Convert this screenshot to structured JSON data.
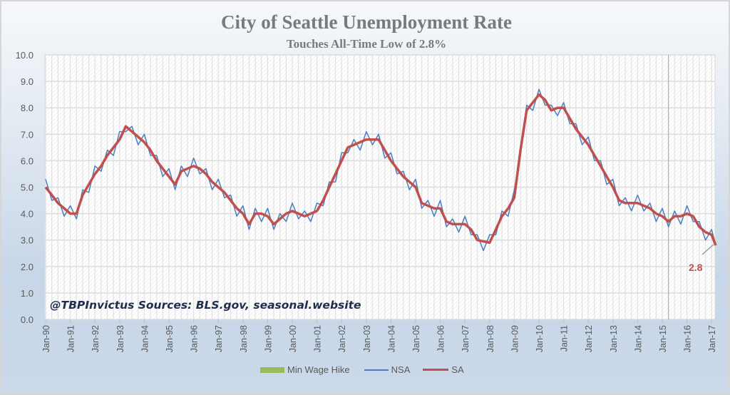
{
  "chart_data": {
    "type": "line",
    "title": "City of Seattle Unemployment Rate",
    "subtitle": "Touches All-Time Low of 2.8%",
    "ylim": [
      0,
      10
    ],
    "y_ticks": [
      "0.0",
      "1.0",
      "2.0",
      "3.0",
      "4.0",
      "5.0",
      "6.0",
      "7.0",
      "8.0",
      "9.0",
      "10.0"
    ],
    "x_ticks": [
      "Jan-90",
      "Jan-91",
      "Jan-92",
      "Jan-93",
      "Jan-94",
      "Jan-95",
      "Jan-96",
      "Jan-97",
      "Jan-98",
      "Jan-99",
      "Jan-00",
      "Jan-01",
      "Jan-02",
      "Jan-03",
      "Jan-04",
      "Jan-05",
      "Jan-06",
      "Jan-07",
      "Jan-08",
      "Jan-09",
      "Jan-10",
      "Jan-11",
      "Jan-12",
      "Jan-13",
      "Jan-14",
      "Jan-15",
      "Jan-16",
      "Jan-17"
    ],
    "grid": true,
    "legend_position": "bottom",
    "annotation": "@TBPInvictus Sources: BLS.gov, seasonal.website",
    "last_value_label": "2.8",
    "min_wage_hike_date": "2015-04",
    "dates": [
      "1990-01",
      "1990-04",
      "1990-07",
      "1990-10",
      "1991-01",
      "1991-04",
      "1991-07",
      "1991-10",
      "1992-01",
      "1992-04",
      "1992-07",
      "1992-10",
      "1993-01",
      "1993-04",
      "1993-07",
      "1993-10",
      "1994-01",
      "1994-04",
      "1994-07",
      "1994-10",
      "1995-01",
      "1995-04",
      "1995-07",
      "1995-10",
      "1996-01",
      "1996-04",
      "1996-07",
      "1996-10",
      "1997-01",
      "1997-04",
      "1997-07",
      "1997-10",
      "1998-01",
      "1998-04",
      "1998-07",
      "1998-10",
      "1999-01",
      "1999-04",
      "1999-07",
      "1999-10",
      "2000-01",
      "2000-04",
      "2000-07",
      "2000-10",
      "2001-01",
      "2001-04",
      "2001-07",
      "2001-10",
      "2002-01",
      "2002-04",
      "2002-07",
      "2002-10",
      "2003-01",
      "2003-04",
      "2003-07",
      "2003-10",
      "2004-01",
      "2004-04",
      "2004-07",
      "2004-10",
      "2005-01",
      "2005-04",
      "2005-07",
      "2005-10",
      "2006-01",
      "2006-04",
      "2006-07",
      "2006-10",
      "2007-01",
      "2007-04",
      "2007-07",
      "2007-10",
      "2008-01",
      "2008-04",
      "2008-07",
      "2008-10",
      "2009-01",
      "2009-04",
      "2009-07",
      "2009-10",
      "2010-01",
      "2010-04",
      "2010-07",
      "2010-10",
      "2011-01",
      "2011-04",
      "2011-07",
      "2011-10",
      "2012-01",
      "2012-04",
      "2012-07",
      "2012-10",
      "2013-01",
      "2013-04",
      "2013-07",
      "2013-10",
      "2014-01",
      "2014-04",
      "2014-07",
      "2014-10",
      "2015-01",
      "2015-04",
      "2015-07",
      "2015-10",
      "2016-01",
      "2016-04",
      "2016-07",
      "2016-10",
      "2017-01",
      "2017-03"
    ],
    "series": [
      {
        "name": "Min Wage Hike",
        "color": "#9bbb59"
      },
      {
        "name": "NSA",
        "color": "#4a7fc1",
        "values": [
          5.3,
          4.5,
          4.6,
          3.9,
          4.3,
          3.8,
          4.9,
          4.8,
          5.8,
          5.6,
          6.4,
          6.2,
          7.1,
          7.1,
          7.3,
          6.6,
          7.0,
          6.2,
          6.2,
          5.4,
          5.7,
          4.9,
          5.8,
          5.4,
          6.1,
          5.5,
          5.7,
          4.9,
          5.3,
          4.6,
          4.7,
          3.9,
          4.3,
          3.4,
          4.2,
          3.7,
          4.2,
          3.4,
          4.0,
          3.7,
          4.4,
          3.8,
          4.1,
          3.7,
          4.4,
          4.3,
          5.2,
          5.2,
          6.3,
          6.3,
          6.8,
          6.4,
          7.1,
          6.6,
          7.0,
          6.1,
          6.3,
          5.5,
          5.6,
          4.9,
          5.3,
          4.2,
          4.5,
          3.9,
          4.5,
          3.5,
          3.8,
          3.3,
          3.9,
          3.2,
          3.2,
          2.6,
          3.2,
          3.2,
          4.1,
          3.9,
          4.9,
          6.2,
          8.1,
          7.9,
          8.7,
          8.1,
          8.1,
          7.7,
          8.2,
          7.4,
          7.4,
          6.6,
          6.9,
          6.0,
          6.0,
          5.1,
          5.3,
          4.3,
          4.6,
          4.1,
          4.7,
          4.1,
          4.4,
          3.7,
          4.2,
          3.5,
          4.1,
          3.6,
          4.3,
          3.7,
          3.7,
          3.0,
          3.4,
          2.8
        ]
      },
      {
        "name": "SA",
        "color": "#c0504d",
        "values": [
          5.0,
          4.7,
          4.4,
          4.2,
          4.0,
          4.0,
          4.7,
          5.1,
          5.5,
          5.8,
          6.2,
          6.5,
          6.8,
          7.3,
          7.1,
          6.9,
          6.7,
          6.4,
          6.0,
          5.7,
          5.4,
          5.1,
          5.6,
          5.7,
          5.8,
          5.7,
          5.5,
          5.2,
          5.0,
          4.8,
          4.5,
          4.2,
          4.0,
          3.6,
          4.0,
          4.0,
          3.9,
          3.6,
          3.8,
          4.0,
          4.1,
          4.0,
          3.9,
          4.0,
          4.1,
          4.5,
          5.0,
          5.5,
          6.0,
          6.5,
          6.6,
          6.7,
          6.8,
          6.8,
          6.8,
          6.4,
          6.0,
          5.7,
          5.4,
          5.2,
          5.0,
          4.4,
          4.3,
          4.2,
          4.2,
          3.7,
          3.6,
          3.6,
          3.6,
          3.4,
          3.0,
          2.95,
          2.9,
          3.4,
          3.9,
          4.2,
          4.6,
          6.4,
          7.9,
          8.2,
          8.5,
          8.3,
          7.9,
          8.0,
          8.0,
          7.6,
          7.2,
          6.9,
          6.6,
          6.2,
          5.8,
          5.4,
          5.0,
          4.5,
          4.4,
          4.4,
          4.4,
          4.3,
          4.2,
          4.0,
          3.9,
          3.7,
          3.9,
          3.9,
          4.0,
          3.9,
          3.5,
          3.3,
          3.2,
          2.8
        ]
      }
    ]
  }
}
